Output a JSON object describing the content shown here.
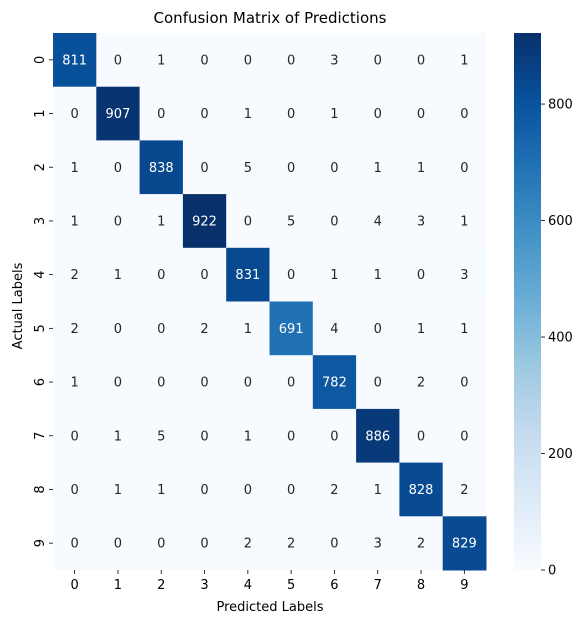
{
  "chart_data": {
    "type": "heatmap",
    "title": "Confusion Matrix of Predictions",
    "xlabel": "Predicted Labels",
    "ylabel": "Actual Labels",
    "x_categories": [
      "0",
      "1",
      "2",
      "3",
      "4",
      "5",
      "6",
      "7",
      "8",
      "9"
    ],
    "y_categories": [
      "0",
      "1",
      "2",
      "3",
      "4",
      "5",
      "6",
      "7",
      "8",
      "9"
    ],
    "values": [
      [
        811,
        0,
        1,
        0,
        0,
        0,
        3,
        0,
        0,
        1
      ],
      [
        0,
        907,
        0,
        0,
        1,
        0,
        1,
        0,
        0,
        0
      ],
      [
        1,
        0,
        838,
        0,
        5,
        0,
        0,
        1,
        1,
        0
      ],
      [
        1,
        0,
        1,
        922,
        0,
        5,
        0,
        4,
        3,
        1
      ],
      [
        2,
        1,
        0,
        0,
        831,
        0,
        1,
        1,
        0,
        3
      ],
      [
        2,
        0,
        0,
        2,
        1,
        691,
        4,
        0,
        1,
        1
      ],
      [
        1,
        0,
        0,
        0,
        0,
        0,
        782,
        0,
        2,
        0
      ],
      [
        0,
        1,
        5,
        0,
        1,
        0,
        0,
        886,
        0,
        0
      ],
      [
        0,
        1,
        1,
        0,
        0,
        0,
        2,
        1,
        828,
        2
      ],
      [
        0,
        0,
        0,
        0,
        2,
        2,
        0,
        3,
        2,
        829
      ]
    ],
    "colormap": "Blues",
    "colorbar": {
      "range": [
        0,
        922
      ],
      "ticks": [
        0,
        200,
        400,
        600,
        800
      ]
    },
    "colors": {
      "low": "#f7fbff",
      "high": "#08306b"
    }
  }
}
